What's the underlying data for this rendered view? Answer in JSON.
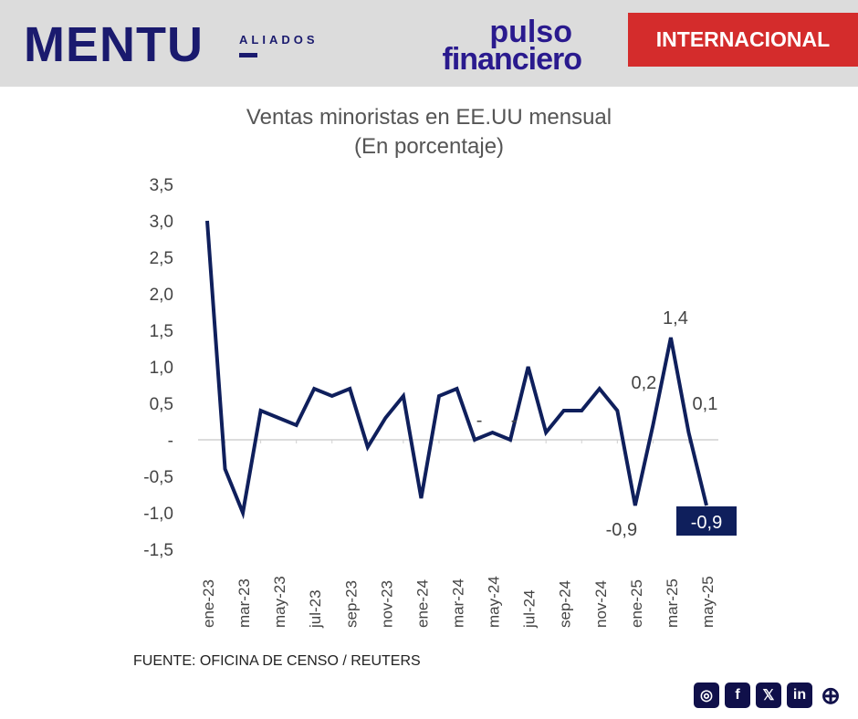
{
  "header": {
    "brand": "MENTU",
    "brand_sub": "ALIADOS",
    "partner_line1": "pulso",
    "partner_line2": "financiero",
    "section": "INTERNACIONAL"
  },
  "chart_data": {
    "type": "line",
    "title": "Ventas minoristas en EE.UU mensual",
    "subtitle": "(En porcentaje)",
    "categories": [
      "ene-23",
      "feb-23",
      "mar-23",
      "abr-23",
      "may-23",
      "jun-23",
      "jul-23",
      "ago-23",
      "sep-23",
      "oct-23",
      "nov-23",
      "dic-23",
      "ene-24",
      "feb-24",
      "mar-24",
      "abr-24",
      "may-24",
      "jun-24",
      "jul-24",
      "ago-24",
      "sep-24",
      "oct-24",
      "nov-24",
      "dic-24",
      "ene-25",
      "feb-25",
      "mar-25",
      "abr-25",
      "may-25"
    ],
    "values": [
      3.0,
      -0.4,
      -1.0,
      0.4,
      0.3,
      0.2,
      0.7,
      0.6,
      0.7,
      -0.1,
      0.3,
      0.6,
      -0.8,
      0.6,
      0.7,
      0.0,
      0.1,
      0.0,
      1.0,
      0.1,
      0.4,
      0.4,
      0.7,
      0.4,
      -0.9,
      0.2,
      1.4,
      0.1,
      -0.9
    ],
    "xtick_labels": [
      "ene-23",
      "mar-23",
      "may-23",
      "jul-23",
      "sep-23",
      "nov-23",
      "ene-24",
      "mar-24",
      "may-24",
      "jul-24",
      "sep-24",
      "nov-24",
      "ene-25",
      "mar-25",
      "may-25"
    ],
    "ytick_labels": [
      "3,5",
      "3,0",
      "2,5",
      "2,0",
      "1,5",
      "1,0",
      "0,5",
      "-",
      "-0,5",
      "-1,0",
      "-1,5"
    ],
    "ylim": [
      -1.5,
      3.5
    ],
    "data_labels": [
      {
        "category": "abr-24",
        "text": "-"
      },
      {
        "category": "jun-24",
        "text": "-"
      },
      {
        "category": "ene-25",
        "text": "-0,9"
      },
      {
        "category": "feb-25",
        "text": "0,2"
      },
      {
        "category": "mar-25",
        "text": "1,4"
      },
      {
        "category": "abr-25",
        "text": "0,1"
      },
      {
        "category": "may-25",
        "text": "-0,9",
        "highlight": true
      }
    ],
    "line_color": "#0f1f5c",
    "grid": false
  },
  "footer": {
    "source": "FUENTE: OFICINA DE CENSO / REUTERS",
    "social": [
      "instagram-icon",
      "facebook-icon",
      "x-icon",
      "linkedin-icon",
      "globe-icon"
    ]
  }
}
